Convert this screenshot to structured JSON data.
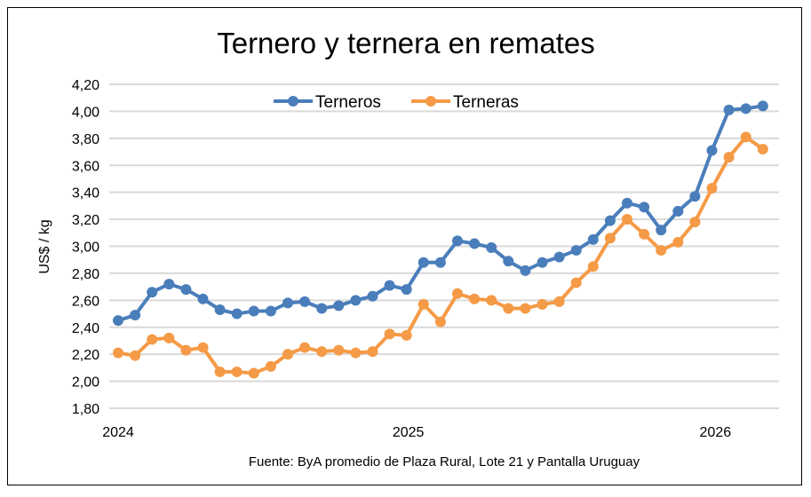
{
  "chart_data": {
    "type": "line",
    "title": "Ternero y ternera en remates",
    "ylabel": "US$ / kg",
    "xlabel": "",
    "ylim": [
      1.8,
      4.2
    ],
    "yticks": [
      "1,80",
      "2,00",
      "2,20",
      "2,40",
      "2,60",
      "2,80",
      "3,00",
      "3,20",
      "3,40",
      "3,60",
      "3,80",
      "4,00",
      "4,20"
    ],
    "xtick_labels": [
      {
        "label": "2024",
        "index": 0
      },
      {
        "label": "2025",
        "index": 17.1
      },
      {
        "label": "2026",
        "index": 35.2
      }
    ],
    "grid": true,
    "legend_position": "top-center",
    "series": [
      {
        "name": "Terneros",
        "color": "#4a7ebb",
        "values": [
          2.45,
          2.49,
          2.66,
          2.72,
          2.68,
          2.61,
          2.53,
          2.5,
          2.52,
          2.52,
          2.58,
          2.59,
          2.54,
          2.56,
          2.6,
          2.63,
          2.71,
          2.68,
          2.88,
          2.88,
          3.04,
          3.02,
          2.99,
          2.89,
          2.82,
          2.88,
          2.92,
          2.97,
          3.05,
          3.19,
          3.32,
          3.29,
          3.12,
          3.26,
          3.37,
          3.71,
          4.01,
          4.02,
          4.04
        ]
      },
      {
        "name": "Terneras",
        "color": "#f59a46",
        "values": [
          2.21,
          2.19,
          2.31,
          2.32,
          2.23,
          2.25,
          2.07,
          2.07,
          2.06,
          2.11,
          2.2,
          2.25,
          2.22,
          2.23,
          2.21,
          2.22,
          2.35,
          2.34,
          2.57,
          2.44,
          2.65,
          2.61,
          2.6,
          2.54,
          2.54,
          2.57,
          2.59,
          2.73,
          2.85,
          3.06,
          3.2,
          3.09,
          2.97,
          3.03,
          3.18,
          3.43,
          3.66,
          3.81,
          3.72
        ]
      }
    ],
    "source": "Fuente: ByA promedio de Plaza Rural, Lote 21 y Pantalla Uruguay"
  }
}
